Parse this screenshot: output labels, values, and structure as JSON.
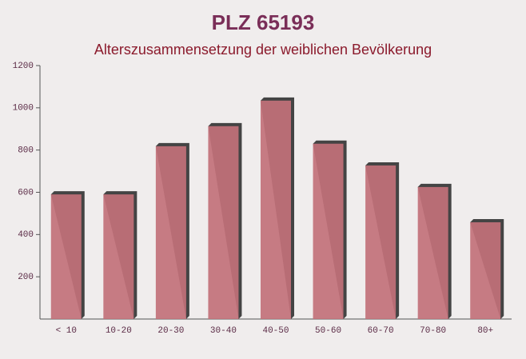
{
  "chart_data": {
    "type": "bar",
    "title": "PLZ 65193",
    "subtitle": "Alterszusammensetzung der weiblichen Bevölkerung",
    "categories": [
      "< 10",
      "10-20",
      "20-30",
      "30-40",
      "40-50",
      "50-60",
      "60-70",
      "70-80",
      "80+"
    ],
    "values": [
      590,
      590,
      818,
      913,
      1034,
      830,
      727,
      625,
      458
    ],
    "color": "#c2717a",
    "ylim": [
      0,
      1200
    ],
    "yticks": [
      200,
      400,
      600,
      800,
      1000,
      1200
    ],
    "grid": false
  }
}
